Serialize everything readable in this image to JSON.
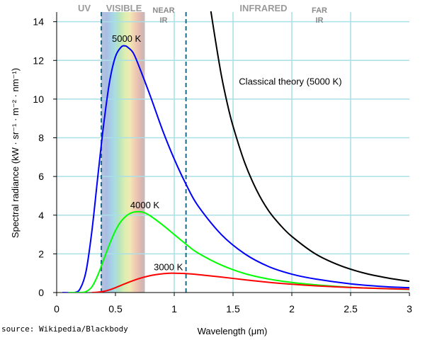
{
  "chart_data": {
    "type": "line",
    "xlabel": "Wavelength (μm)",
    "ylabel": "Spectral radiance (kW · sr⁻¹ · m⁻² · nm⁻¹)",
    "xlim": [
      0,
      3
    ],
    "ylim": [
      0,
      14.5
    ],
    "x_ticks": [
      "0",
      "0.5",
      "1",
      "1.5",
      "2",
      "2.5",
      "3"
    ],
    "y_ticks": [
      "0",
      "2",
      "4",
      "6",
      "8",
      "10",
      "12",
      "14"
    ],
    "grid": true,
    "regions": [
      {
        "label": "UV",
        "x_from": 0.0,
        "x_to": 0.38
      },
      {
        "label": "VISIBLE",
        "x_from": 0.38,
        "x_to": 0.75
      },
      {
        "label": "NEAR IR",
        "label_lines": [
          "NEAR",
          "IR"
        ],
        "x_from": 0.75,
        "x_to": 1.1
      },
      {
        "label": "INFRARED",
        "x_from": 1.1,
        "x_to": 2.0
      },
      {
        "label": "FAR IR",
        "label_lines": [
          "FAR",
          "IR"
        ],
        "x_from": 2.0,
        "x_to": 3.0
      }
    ],
    "boundary_lines_x": [
      0.38,
      1.1
    ],
    "series": [
      {
        "name": "5000 K",
        "color": "#0000ff",
        "x": [
          0.05,
          0.15,
          0.2,
          0.25,
          0.3,
          0.35,
          0.4,
          0.45,
          0.5,
          0.55,
          0.58,
          0.6,
          0.65,
          0.7,
          0.8,
          0.9,
          1.0,
          1.1,
          1.2,
          1.4,
          1.6,
          1.8,
          2.0,
          2.2,
          2.5,
          2.8,
          3.0
        ],
        "y": [
          0.0,
          0.0,
          0.2,
          1.1,
          3.2,
          6.0,
          8.7,
          10.9,
          12.2,
          12.7,
          12.75,
          12.7,
          12.4,
          11.7,
          10.1,
          8.4,
          6.9,
          5.6,
          4.5,
          3.0,
          2.0,
          1.35,
          0.95,
          0.7,
          0.45,
          0.3,
          0.25
        ]
      },
      {
        "name": "4000 K",
        "color": "#00ff00",
        "x": [
          0.1,
          0.2,
          0.25,
          0.3,
          0.35,
          0.4,
          0.45,
          0.5,
          0.55,
          0.6,
          0.65,
          0.7,
          0.72,
          0.75,
          0.8,
          0.9,
          1.0,
          1.1,
          1.2,
          1.4,
          1.6,
          1.8,
          2.0,
          2.2,
          2.5,
          2.8,
          3.0
        ],
        "y": [
          0.0,
          0.0,
          0.05,
          0.3,
          0.9,
          1.7,
          2.5,
          3.2,
          3.7,
          4.0,
          4.15,
          4.18,
          4.17,
          4.12,
          3.95,
          3.5,
          3.0,
          2.5,
          2.05,
          1.42,
          0.98,
          0.7,
          0.52,
          0.4,
          0.27,
          0.2,
          0.16
        ]
      },
      {
        "name": "3000 K",
        "color": "#ff0000",
        "x": [
          0.3,
          0.35,
          0.4,
          0.45,
          0.5,
          0.6,
          0.7,
          0.8,
          0.9,
          0.97,
          1.0,
          1.1,
          1.2,
          1.4,
          1.6,
          1.8,
          2.0,
          2.2,
          2.5,
          2.8,
          3.0
        ],
        "y": [
          0.0,
          0.02,
          0.06,
          0.14,
          0.25,
          0.5,
          0.72,
          0.88,
          0.97,
          1.0,
          1.0,
          0.98,
          0.93,
          0.8,
          0.66,
          0.53,
          0.43,
          0.35,
          0.26,
          0.2,
          0.17
        ]
      },
      {
        "name": "Classical theory (5000 K)",
        "color": "#000000",
        "x": [
          1.3,
          1.35,
          1.4,
          1.45,
          1.5,
          1.6,
          1.7,
          1.8,
          1.9,
          2.0,
          2.2,
          2.4,
          2.6,
          2.8,
          3.0
        ],
        "y": [
          15.0,
          13.05,
          11.25,
          9.8,
          8.6,
          6.7,
          5.3,
          4.25,
          3.5,
          2.9,
          2.0,
          1.42,
          1.03,
          0.77,
          0.58
        ]
      }
    ],
    "annotations": [
      {
        "text": "5000 K",
        "x": 0.6,
        "y": 13.1
      },
      {
        "text": "4000 K",
        "x": 0.75,
        "y": 4.5
      },
      {
        "text": "3000 K",
        "x": 0.95,
        "y": 1.3
      },
      {
        "text": "Classical theory (5000 K)",
        "x": 1.8,
        "y": 10.9
      }
    ]
  },
  "footer": {
    "source": "source: Wikipedia/Blackbody"
  }
}
